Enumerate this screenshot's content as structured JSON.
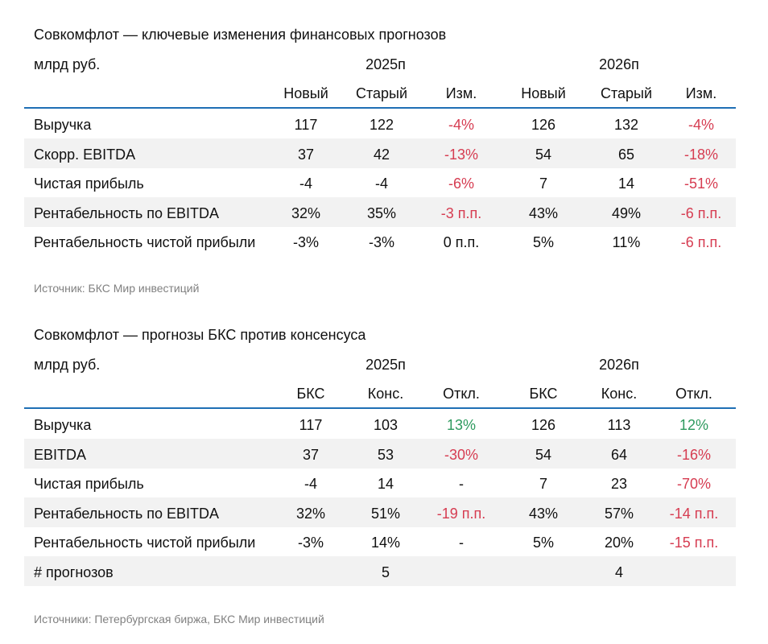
{
  "colors": {
    "rule": "#1f6fb5",
    "negative": "#d63c51",
    "positive": "#2e9a5e",
    "shade": "#f2f2f2",
    "source": "#808080"
  },
  "table1": {
    "title": "Совкомфлот — ключевые изменения финансовых прогнозов",
    "unit": "млрд руб.",
    "years": [
      "2025п",
      "2026п"
    ],
    "subheaders": [
      "Новый",
      "Старый",
      "Изм.",
      "Новый",
      "Старый",
      "Изм."
    ],
    "rows": [
      {
        "label": "Выручка",
        "cells": [
          "117",
          "122",
          "-4%",
          "126",
          "132",
          "-4%"
        ],
        "tones": [
          "",
          "",
          "neg",
          "",
          "",
          "neg"
        ]
      },
      {
        "label": "Скорр. EBITDA",
        "cells": [
          "37",
          "42",
          "-13%",
          "54",
          "65",
          "-18%"
        ],
        "tones": [
          "",
          "",
          "neg",
          "",
          "",
          "neg"
        ]
      },
      {
        "label": "Чистая прибыль",
        "cells": [
          "-4",
          "-4",
          "-6%",
          "7",
          "14",
          "-51%"
        ],
        "tones": [
          "",
          "",
          "neg",
          "",
          "",
          "neg"
        ]
      },
      {
        "label": "Рентабельность по EBITDA",
        "cells": [
          "32%",
          "35%",
          "-3 п.п.",
          "43%",
          "49%",
          "-6 п.п."
        ],
        "tones": [
          "",
          "",
          "neg",
          "",
          "",
          "neg"
        ]
      },
      {
        "label": "Рентабельность чистой прибыли",
        "cells": [
          "-3%",
          "-3%",
          "0 п.п.",
          "5%",
          "11%",
          "-6 п.п."
        ],
        "tones": [
          "",
          "",
          "",
          "",
          "",
          "neg"
        ]
      }
    ],
    "source": "Источник: БКС Мир инвестиций"
  },
  "table2": {
    "title": "Совкомфлот — прогнозы БКС против консенсуса",
    "unit": "млрд руб.",
    "years": [
      "2025п",
      "2026п"
    ],
    "subheaders": [
      "БКС",
      "Конс.",
      "Откл.",
      "БКС",
      "Конс.",
      "Откл."
    ],
    "rows": [
      {
        "label": "Выручка",
        "cells": [
          "117",
          "103",
          "13%",
          "126",
          "113",
          "12%"
        ],
        "tones": [
          "",
          "",
          "pos",
          "",
          "",
          "pos"
        ]
      },
      {
        "label": "EBITDA",
        "cells": [
          "37",
          "53",
          "-30%",
          "54",
          "64",
          "-16%"
        ],
        "tones": [
          "",
          "",
          "neg",
          "",
          "",
          "neg"
        ]
      },
      {
        "label": "Чистая прибыль",
        "cells": [
          "-4",
          "14",
          "-",
          "7",
          "23",
          "-70%"
        ],
        "tones": [
          "",
          "",
          "",
          "",
          "",
          "neg"
        ]
      },
      {
        "label": "Рентабельность по EBITDA",
        "cells": [
          "32%",
          "51%",
          "-19 п.п.",
          "43%",
          "57%",
          "-14 п.п."
        ],
        "tones": [
          "",
          "",
          "neg",
          "",
          "",
          "neg"
        ]
      },
      {
        "label": "Рентабельность чистой прибыли",
        "cells": [
          "-3%",
          "14%",
          "-",
          "5%",
          "20%",
          "-15 п.п."
        ],
        "tones": [
          "",
          "",
          "",
          "",
          "",
          "neg"
        ]
      },
      {
        "label": "# прогнозов",
        "cells": [
          "",
          "5",
          "",
          "",
          "4",
          ""
        ],
        "tones": [
          "",
          "",
          "",
          "",
          "",
          ""
        ]
      }
    ],
    "source": "Источники: Петербургская биржа, БКС Мир инвестиций"
  }
}
